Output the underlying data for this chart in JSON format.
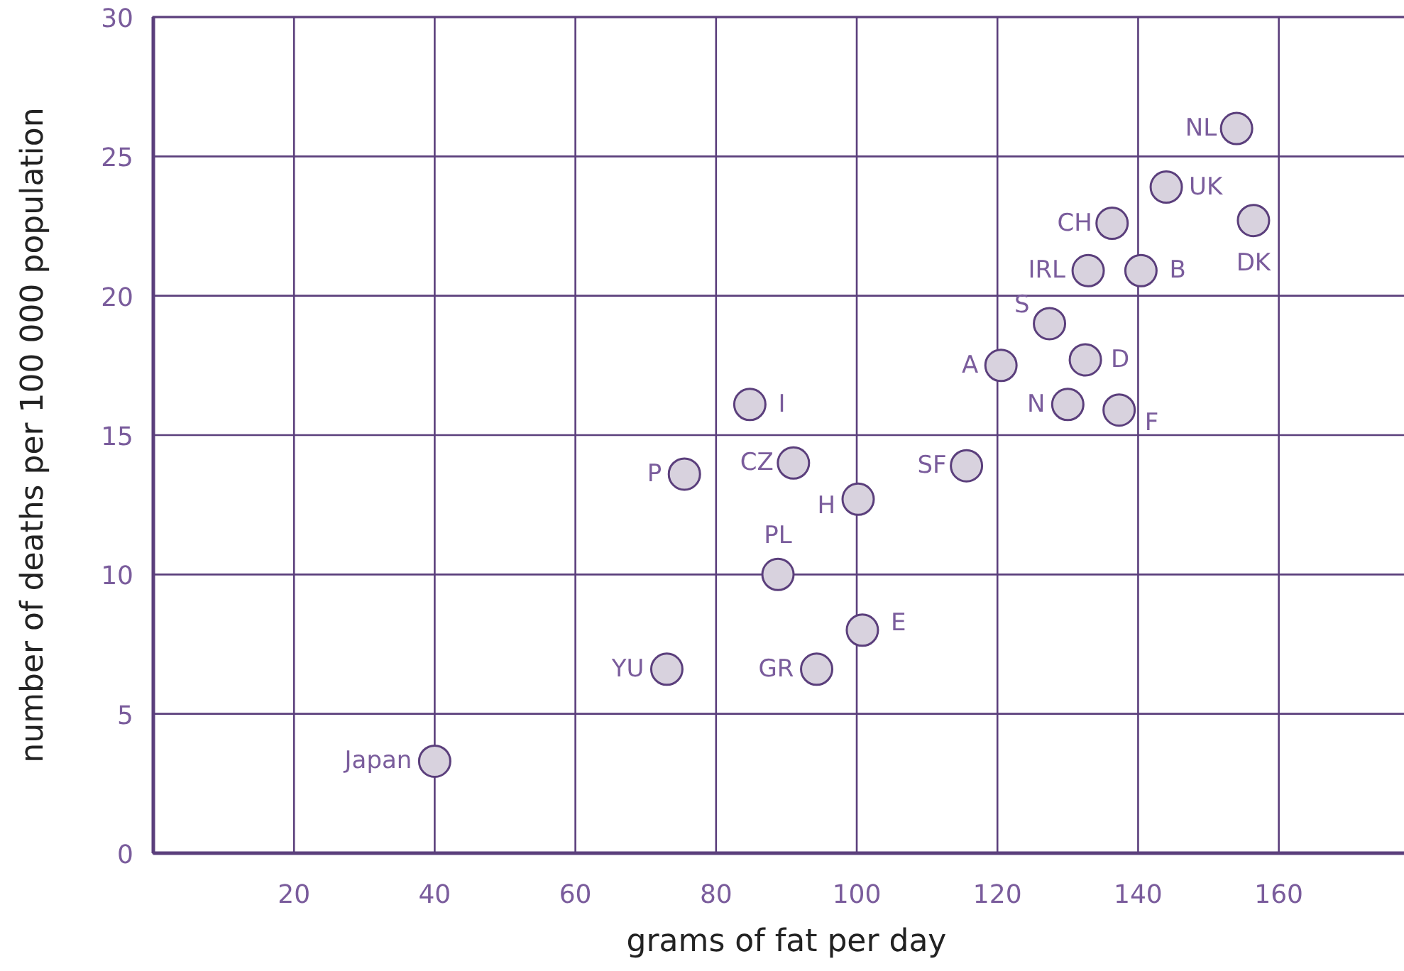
{
  "chart_data": {
    "type": "scatter",
    "xlabel": "grams of fat per day",
    "ylabel": "number of deaths per 100 000 population",
    "x": [
      40,
      73,
      94.3,
      100.8,
      88.8,
      75.5,
      91,
      100.2,
      84.8,
      115.6,
      120.5,
      127.4,
      132.5,
      130,
      137.3,
      132.9,
      140.4,
      136.3,
      144,
      156.4,
      154
    ],
    "series": [
      {
        "color": "#d8d2de",
        "values": [
          3.3,
          6.6,
          6.6,
          8.0,
          10.0,
          13.6,
          14.0,
          12.7,
          16.1,
          13.9,
          17.5,
          19.0,
          17.7,
          16.1,
          15.9,
          20.9,
          20.9,
          22.6,
          23.9,
          22.7,
          26.0
        ]
      }
    ],
    "xlim": [
      0,
      178
    ],
    "ylim": [
      0,
      30
    ],
    "xticks": [
      20,
      40,
      60,
      80,
      100,
      120,
      140,
      160
    ],
    "yticks": [
      0,
      5,
      10,
      15,
      20,
      25,
      30
    ],
    "grid": true,
    "marker": "circle",
    "annotations": [
      {
        "text": "Japan",
        "x": 40,
        "y": 3.3
      },
      {
        "text": "YU",
        "x": 73,
        "y": 6.6
      },
      {
        "text": "GR",
        "x": 94.3,
        "y": 6.6
      },
      {
        "text": "E",
        "x": 100.8,
        "y": 8.0
      },
      {
        "text": "PL",
        "x": 88.8,
        "y": 10.0
      },
      {
        "text": "P",
        "x": 75.5,
        "y": 13.6
      },
      {
        "text": "CZ",
        "x": 91,
        "y": 14.0
      },
      {
        "text": "H",
        "x": 100.2,
        "y": 12.7
      },
      {
        "text": "I",
        "x": 84.8,
        "y": 16.1
      },
      {
        "text": "SF",
        "x": 115.6,
        "y": 13.9
      },
      {
        "text": "A",
        "x": 120.5,
        "y": 17.5
      },
      {
        "text": "S",
        "x": 127.4,
        "y": 19.0
      },
      {
        "text": "D",
        "x": 132.5,
        "y": 17.7
      },
      {
        "text": "N",
        "x": 130,
        "y": 16.1
      },
      {
        "text": "F",
        "x": 137.3,
        "y": 15.9
      },
      {
        "text": "IRL",
        "x": 132.9,
        "y": 20.9
      },
      {
        "text": "B",
        "x": 140.4,
        "y": 20.9
      },
      {
        "text": "CH",
        "x": 136.3,
        "y": 22.6
      },
      {
        "text": "UK",
        "x": 144,
        "y": 23.9
      },
      {
        "text": "DK",
        "x": 156.4,
        "y": 22.7
      },
      {
        "text": "NL",
        "x": 154,
        "y": 26.0
      }
    ]
  }
}
